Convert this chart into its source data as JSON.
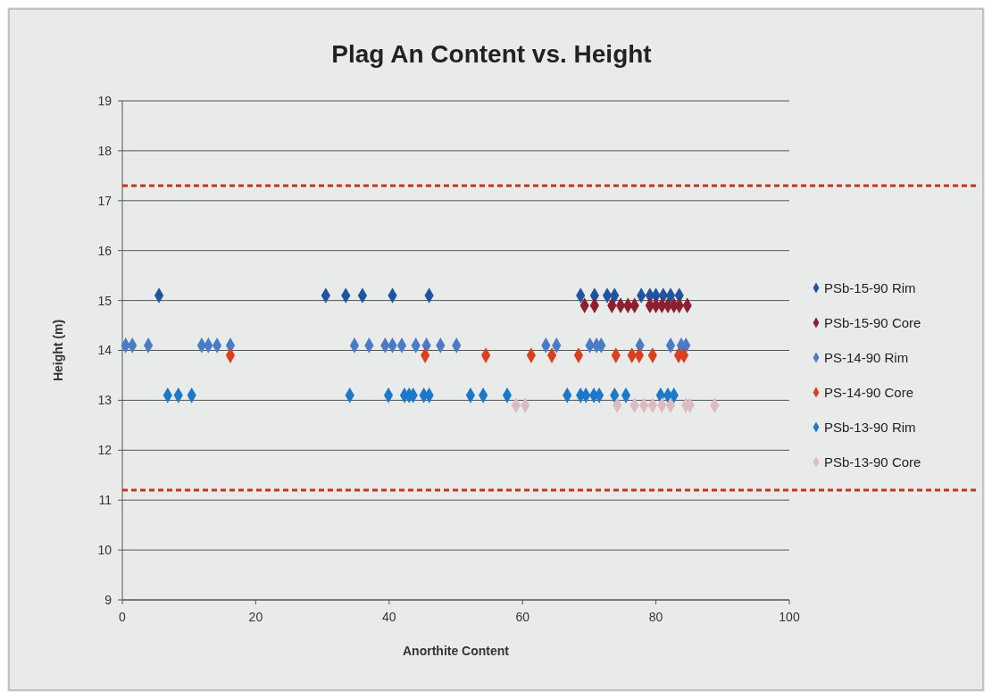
{
  "chart_data": {
    "type": "scatter",
    "title": "Plag An Content vs. Height",
    "xlabel": "Anorthite Content",
    "ylabel": "Height (m)",
    "xlim": [
      0,
      100
    ],
    "xticks": [
      0,
      20,
      40,
      60,
      80,
      100
    ],
    "ylim": [
      9,
      19
    ],
    "yticks": [
      9,
      10,
      11,
      12,
      13,
      14,
      15,
      16,
      17,
      18,
      19
    ],
    "grid": "y",
    "legend": "right",
    "marker": "diamond",
    "ref_lines": [
      {
        "axis": "y",
        "value": 17.3,
        "color": "#c8321e",
        "line_style": "dashed"
      },
      {
        "axis": "y",
        "value": 11.2,
        "color": "#c8321e",
        "line_style": "dashed"
      }
    ],
    "series": [
      {
        "name": "PSb-15-90 Rim",
        "color": "#1f55a0",
        "x": [
          5.5,
          30.5,
          33.5,
          36,
          40.5,
          46,
          68.7,
          70.8,
          72.7,
          73.8,
          77.8,
          79.1,
          80,
          81.1,
          82.2,
          83.5
        ],
        "values": [
          15.1,
          15.1,
          15.1,
          15.1,
          15.1,
          15.1,
          15.1,
          15.1,
          15.1,
          15.1,
          15.1,
          15.1,
          15.1,
          15.1,
          15.1,
          15.1
        ]
      },
      {
        "name": "PSb-15-90 Core",
        "color": "#8c2030",
        "x": [
          69.3,
          70.8,
          73.4,
          74.7,
          75.8,
          76.8,
          79.1,
          80,
          80.9,
          81.8,
          82.7,
          83.5,
          84.7
        ],
        "values": [
          14.9,
          14.9,
          14.9,
          14.9,
          14.9,
          14.9,
          14.9,
          14.9,
          14.9,
          14.9,
          14.9,
          14.9,
          14.9
        ]
      },
      {
        "name": "PS-14-90 Rim",
        "color": "#4a7cc6",
        "x": [
          0.5,
          1.5,
          3.9,
          11.9,
          12.9,
          14.2,
          16.2,
          34.8,
          37,
          39.4,
          40.5,
          41.9,
          44,
          45.6,
          47.7,
          50.1,
          63.5,
          65.1,
          70.1,
          71.1,
          71.8,
          77.6,
          82.2,
          83.8,
          84.5
        ],
        "values": [
          14.1,
          14.1,
          14.1,
          14.1,
          14.1,
          14.1,
          14.1,
          14.1,
          14.1,
          14.1,
          14.1,
          14.1,
          14.1,
          14.1,
          14.1,
          14.1,
          14.1,
          14.1,
          14.1,
          14.1,
          14.1,
          14.1,
          14.1,
          14.1,
          14.1
        ]
      },
      {
        "name": "PS-14-90 Core",
        "color": "#d9401e",
        "x": [
          16.2,
          45.4,
          54.5,
          61.3,
          64.4,
          68.4,
          74,
          76.4,
          77.5,
          79.5,
          83.4,
          84.2
        ],
        "values": [
          13.9,
          13.9,
          13.9,
          13.9,
          13.9,
          13.9,
          13.9,
          13.9,
          13.9,
          13.9,
          13.9,
          13.9
        ]
      },
      {
        "name": "PSb-13-90 Rim",
        "color": "#1c78c8",
        "x": [
          6.8,
          8.4,
          10.4,
          34.1,
          39.9,
          42.3,
          43,
          43.6,
          45.2,
          46,
          52.2,
          54.1,
          57.7,
          66.7,
          68.7,
          69.5,
          70.7,
          71.5,
          73.8,
          75.5,
          80.7,
          81.8,
          82.7
        ],
        "values": [
          13.1,
          13.1,
          13.1,
          13.1,
          13.1,
          13.1,
          13.1,
          13.1,
          13.1,
          13.1,
          13.1,
          13.1,
          13.1,
          13.1,
          13.1,
          13.1,
          13.1,
          13.1,
          13.1,
          13.1,
          13.1,
          13.1,
          13.1
        ]
      },
      {
        "name": "PSb-13-90 Core",
        "color": "#dcbcc2",
        "x": [
          59,
          60.4,
          74.2,
          76.8,
          78.2,
          79.5,
          80.9,
          82.2,
          84.5,
          85.1,
          88.8
        ],
        "values": [
          12.9,
          12.9,
          12.9,
          12.9,
          12.9,
          12.9,
          12.9,
          12.9,
          12.9,
          12.9,
          12.9
        ]
      }
    ]
  }
}
